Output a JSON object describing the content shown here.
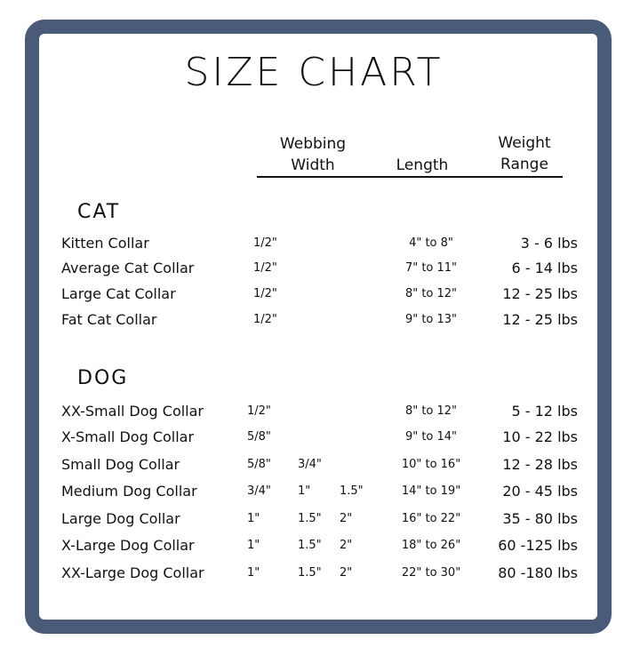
{
  "title": "SIZE CHART",
  "headers": {
    "webbing_1": "Webbing",
    "webbing_2": "Width",
    "length": "Length",
    "weight_1": "Weight",
    "weight_2": "Range"
  },
  "colors": {
    "border": "#4a5a79"
  },
  "cat": {
    "label": "CAT",
    "rows": [
      {
        "name": "Kitten Collar",
        "widths": [
          "1/2\""
        ],
        "length": "4\" to 8\"",
        "weight": "3 - 6 lbs"
      },
      {
        "name": "Average Cat Collar",
        "widths": [
          "1/2\""
        ],
        "length": "7\" to 11\"",
        "weight": "6 - 14 lbs"
      },
      {
        "name": "Large Cat Collar",
        "widths": [
          "1/2\""
        ],
        "length": "8\" to 12\"",
        "weight": "12 - 25 lbs"
      },
      {
        "name": "Fat Cat Collar",
        "widths": [
          "1/2\""
        ],
        "length": "9\" to 13\"",
        "weight": "12 - 25 lbs"
      }
    ]
  },
  "dog": {
    "label": "DOG",
    "rows": [
      {
        "name": "XX-Small Dog Collar",
        "widths": [
          "1/2\""
        ],
        "length": "8\" to 12\"",
        "weight": "5 - 12 lbs"
      },
      {
        "name": "X-Small Dog Collar",
        "widths": [
          "5/8\""
        ],
        "length": "9\" to 14\"",
        "weight": "10 - 22 lbs"
      },
      {
        "name": "Small Dog Collar",
        "widths": [
          "5/8\"",
          "3/4\""
        ],
        "length": "10\" to 16\"",
        "weight": "12 - 28 lbs"
      },
      {
        "name": "Medium Dog Collar",
        "widths": [
          "3/4\"",
          "1\"",
          "1.5\""
        ],
        "length": "14\" to 19\"",
        "weight": "20 - 45 lbs"
      },
      {
        "name": "Large Dog Collar",
        "widths": [
          "1\"",
          "1.5\"",
          "2\""
        ],
        "length": "16\" to 22\"",
        "weight": "35 - 80 lbs"
      },
      {
        "name": "X-Large Dog Collar",
        "widths": [
          "1\"",
          "1.5\"",
          "2\""
        ],
        "length": "18\" to 26\"",
        "weight": "60 -125 lbs"
      },
      {
        "name": "XX-Large Dog Collar",
        "widths": [
          "1\"",
          "1.5\"",
          "2\""
        ],
        "length": "22\" to 30\"",
        "weight": "80 -180 lbs"
      }
    ]
  }
}
